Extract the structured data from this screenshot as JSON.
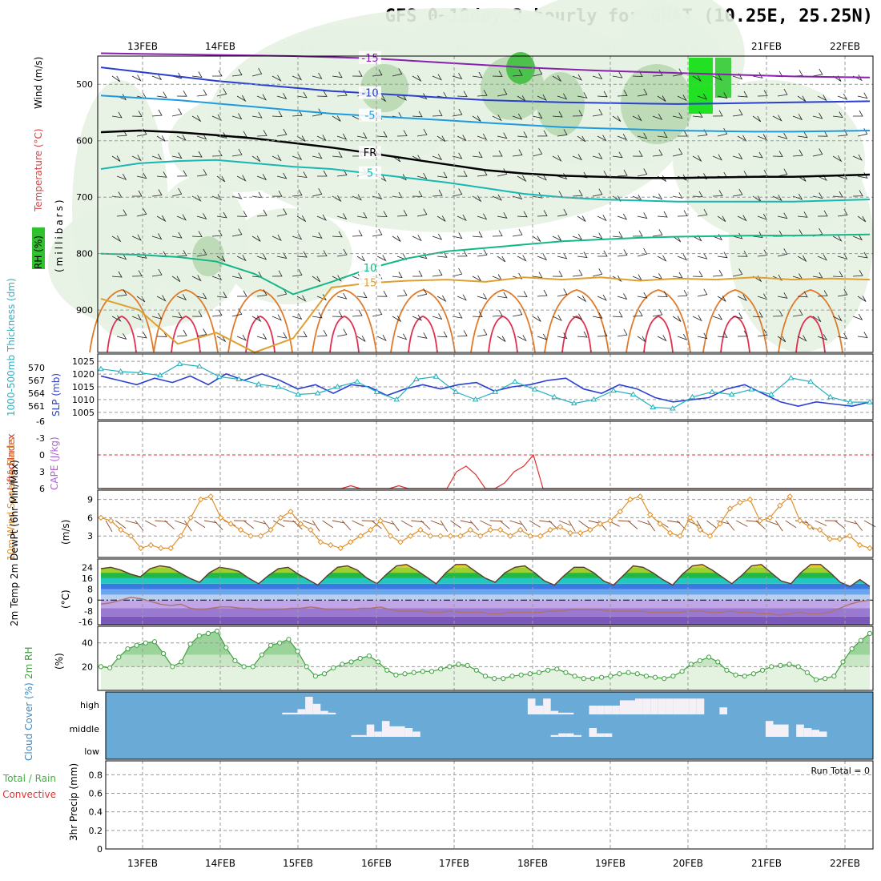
{
  "title": "GFS 0~10day 3-hourly for GHAT (10.25E, 25.25N)",
  "dates": [
    "13FEB",
    "14FEB",
    "15FEB",
    "16FEB",
    "17FEB",
    "18FEB",
    "19FEB",
    "20FEB",
    "21FEB",
    "22FEB"
  ],
  "colors": {
    "grid": "#9a9a9a",
    "cloud": "#6aaad6",
    "cloud_block": "#f4f0f6"
  },
  "chart_data": [
    {
      "type": "heatmap",
      "name": "upper-air",
      "ylabel": "(millibars)",
      "labels": [
        "RH (%)",
        "Temperature (°C)",
        "Wind (m/s)"
      ],
      "y_ticks": [
        500,
        600,
        700,
        800,
        900
      ],
      "ylim": [
        450,
        975
      ],
      "freezing_label": "FR",
      "isotherms": [
        {
          "value": -15,
          "label": "-15",
          "color": "#8a1fb0",
          "p": [
            445,
            446,
            447,
            448,
            449,
            450,
            452,
            454,
            458,
            462,
            466,
            470,
            473,
            476,
            478,
            480,
            482,
            484,
            486,
            487,
            488
          ]
        },
        {
          "value": -10,
          "label": "-10",
          "color": "#2a3fd0",
          "p": [
            470,
            478,
            486,
            494,
            500,
            506,
            512,
            516,
            520,
            524,
            528,
            530,
            532,
            533,
            534,
            535,
            534,
            533,
            532,
            531,
            530
          ]
        },
        {
          "value": -5,
          "label": "-5",
          "color": "#1e9be0",
          "p": [
            520,
            524,
            528,
            534,
            540,
            546,
            552,
            556,
            560,
            564,
            568,
            572,
            576,
            578,
            580,
            582,
            583,
            584,
            584,
            583,
            582
          ]
        },
        {
          "value": 0,
          "label": "FR",
          "color": "#000000",
          "p": [
            585,
            582,
            585,
            590,
            596,
            604,
            612,
            622,
            632,
            642,
            652,
            658,
            662,
            664,
            666,
            666,
            665,
            664,
            664,
            662,
            660
          ]
        },
        {
          "value": 5,
          "label": "5",
          "color": "#18b8b0",
          "p": [
            650,
            640,
            636,
            634,
            640,
            646,
            650,
            658,
            666,
            674,
            684,
            694,
            700,
            704,
            706,
            708,
            708,
            708,
            708,
            706,
            704
          ]
        },
        {
          "value": 10,
          "label": "10",
          "color": "#14b888",
          "p": [
            800,
            802,
            806,
            814,
            836,
            872,
            850,
            826,
            808,
            796,
            790,
            784,
            778,
            775,
            772,
            770,
            769,
            768,
            768,
            767,
            766
          ]
        },
        {
          "value": 15,
          "label": "15",
          "color": "#e0a030",
          "p": [
            880,
            900,
            960,
            940,
            980,
            950,
            860,
            852,
            848,
            846,
            850,
            842,
            846,
            842,
            848,
            844,
            846,
            842,
            846,
            844,
            846
          ]
        }
      ],
      "rh_contours": [
        "10",
        "50",
        "70"
      ]
    },
    {
      "type": "line",
      "name": "thickness-slp",
      "ylabel_left": "1000-500mb Thickness (dm)",
      "ylabel_right": "SLP (mb)",
      "left_ticks": [
        561,
        564,
        567,
        570
      ],
      "right_ticks": [
        1005,
        1010,
        1015,
        1020,
        1025
      ],
      "series": [
        {
          "name": "Thickness (dm)",
          "color": "#2a3fd0",
          "values": [
            568,
            567,
            566,
            567.5,
            566.5,
            568,
            566,
            568.5,
            567,
            568.5,
            567,
            565,
            566,
            564,
            566,
            565.5,
            563.5,
            565,
            566,
            565,
            566,
            566.5,
            564.5,
            565.5,
            566,
            567,
            567.5,
            565,
            564,
            566,
            565,
            563,
            562,
            562.5,
            563,
            565,
            566,
            564,
            562,
            561,
            562,
            561.5,
            561,
            562
          ]
        },
        {
          "name": "SLP (mb)",
          "color": "#22b0c0",
          "values": [
            1022,
            1021,
            1020.5,
            1019.5,
            1024,
            1023,
            1019,
            1018,
            1016,
            1015,
            1012,
            1012.5,
            1015,
            1017,
            1013,
            1010,
            1018,
            1019,
            1013,
            1010,
            1013,
            1017,
            1014,
            1011,
            1008.5,
            1010,
            1013.5,
            1012,
            1007,
            1006.5,
            1011,
            1013,
            1012,
            1014,
            1012,
            1018.5,
            1017,
            1011,
            1009,
            1009
          ]
        }
      ]
    },
    {
      "type": "line",
      "name": "lifted-index-cape",
      "ylabel_left": "Lifted Index",
      "ylabel_right": "CAPE (J/kg)",
      "left_ticks": [
        6,
        3,
        0,
        -3,
        -6
      ],
      "ylim": [
        6,
        -6
      ],
      "series": [
        {
          "name": "Lifted Index",
          "color": "#e03030",
          "values": [
            6,
            6,
            6,
            6,
            6,
            6,
            6,
            6,
            6,
            6,
            6,
            6,
            6,
            6,
            6,
            6,
            6,
            6,
            6,
            6,
            6,
            6,
            6,
            6,
            6,
            6,
            5.5,
            6,
            6,
            6,
            6,
            5.5,
            6,
            6,
            6,
            6,
            6,
            3,
            2,
            3.5,
            6,
            6,
            5,
            3,
            2,
            0,
            6,
            6,
            6,
            6,
            6,
            6,
            6,
            6,
            6,
            6,
            6,
            6,
            6,
            6,
            6,
            6,
            6,
            6,
            6,
            6,
            6,
            6,
            6,
            6,
            6,
            6,
            6,
            6,
            6,
            6,
            6,
            6,
            6,
            6,
            6
          ]
        },
        {
          "name": "Zero line",
          "color": "#e03030",
          "values": [
            0
          ]
        }
      ]
    },
    {
      "type": "line",
      "name": "10m-wind",
      "ylabel_left": "10m Wind Speed & Barbs",
      "ylabel_right": "(m/s)",
      "left_ticks": [
        3,
        6,
        9
      ],
      "ylim": [
        0,
        10
      ],
      "series": [
        {
          "name": "Wind speed (m/s)",
          "color": "#e0902a",
          "values": [
            6,
            5.5,
            4,
            3,
            1,
            1.5,
            1,
            1,
            3,
            6,
            9,
            9.5,
            6,
            5,
            4,
            3,
            3,
            4,
            6,
            7,
            5,
            4,
            2,
            1.5,
            1,
            2,
            3,
            4,
            5.5,
            3,
            2,
            3,
            4,
            3,
            3,
            3,
            3,
            4,
            3,
            4,
            4,
            3,
            4,
            3,
            3,
            4,
            4.5,
            3.5,
            3.5,
            4,
            5,
            5.5,
            7,
            9,
            9.5,
            6.5,
            5,
            3.5,
            3,
            6,
            4,
            3,
            5,
            7.5,
            8.5,
            9,
            5.5,
            6,
            8,
            9.5,
            5.5,
            4.5,
            4,
            2.5,
            2.5,
            3,
            1.5,
            1
          ]
        }
      ]
    },
    {
      "type": "area",
      "name": "temperature-dewpoint",
      "ylabel_left": "2m Temp 2m DewPt (6hr Min/Max)",
      "ylabel_right": "(°C)",
      "left_ticks": [
        24,
        16,
        8,
        0,
        -8,
        -16
      ],
      "ylim": [
        -18,
        30
      ],
      "series": [
        {
          "name": "2m Temp (°C)",
          "values": [
            23,
            24,
            22,
            19,
            17,
            23,
            25,
            24,
            20,
            16,
            13,
            20,
            24,
            23,
            21,
            16,
            12,
            18,
            23,
            24,
            19,
            15,
            11,
            18,
            24,
            25,
            22,
            16,
            12,
            19,
            25,
            26,
            22,
            17,
            12,
            20,
            26,
            26,
            21,
            16,
            13,
            20,
            24,
            25,
            20,
            14,
            11,
            18,
            24,
            24,
            20,
            14,
            11,
            18,
            25,
            24,
            20,
            15,
            11,
            19,
            25,
            26,
            22,
            17,
            12,
            18,
            25,
            26,
            20,
            14,
            12,
            20,
            26,
            26,
            20,
            13,
            10,
            15,
            10
          ]
        },
        {
          "name": "2m DewPt (°C)",
          "values": [
            -3,
            -2,
            0,
            2,
            1,
            -1,
            -3,
            -4,
            -3,
            -6,
            -7,
            -6,
            -5,
            -5,
            -6,
            -6,
            -7,
            -7,
            -7,
            -6,
            -6,
            -5,
            -6,
            -7,
            -7,
            -7,
            -6,
            -6,
            -5,
            -7,
            -8,
            -8,
            -8,
            -9,
            -9,
            -8,
            -9,
            -9,
            -9,
            -10,
            -10,
            -9,
            -9,
            -9,
            -9,
            -8,
            -8,
            -7,
            -7,
            -7,
            -7,
            -8,
            -8,
            -8,
            -8,
            -9,
            -9,
            -9,
            -9,
            -8,
            -8,
            -9,
            -9,
            -8,
            -9,
            -9,
            -10,
            -10,
            -11,
            -10,
            -9,
            -10,
            -10,
            -9,
            -6,
            -3,
            -1,
            0
          ]
        }
      ]
    },
    {
      "type": "area",
      "name": "relative-humidity",
      "ylabel_left": "2m RH",
      "ylabel_right": "(%)",
      "left_ticks": [
        20,
        40
      ],
      "ylim": [
        0,
        54
      ],
      "series": [
        {
          "name": "2m RH (%)",
          "color": "#40a040",
          "values": [
            20,
            19,
            28,
            35,
            38,
            40,
            41,
            31,
            20,
            24,
            39,
            46,
            48,
            50,
            36,
            25,
            20,
            20,
            30,
            38,
            40,
            43,
            33,
            20,
            12,
            14,
            19,
            22,
            24,
            27,
            29,
            24,
            17,
            13,
            14,
            15,
            16,
            16,
            18,
            20,
            22,
            21,
            17,
            12,
            10,
            10,
            12,
            13,
            14,
            15,
            17,
            18,
            15,
            12,
            10,
            10,
            11,
            12,
            14,
            15,
            14,
            12,
            11,
            10,
            12,
            16,
            22,
            25,
            28,
            24,
            17,
            13,
            12,
            14,
            17,
            20,
            21,
            22,
            20,
            15,
            9,
            10,
            12,
            24,
            35,
            42,
            48
          ]
        }
      ]
    },
    {
      "type": "bar",
      "name": "cloud-cover",
      "ylabel": "Cloud Cover (%)",
      "levels": [
        "high",
        "middle",
        "low"
      ],
      "series": [
        {
          "name": "high",
          "values": [
            0,
            0,
            0,
            0,
            0,
            0,
            0,
            0,
            0,
            0,
            0,
            0,
            0,
            0,
            0,
            0,
            0,
            0,
            0,
            0,
            0,
            0,
            0,
            0.1,
            0.1,
            0.3,
            1,
            0.6,
            0.2,
            0.1,
            0,
            0,
            0,
            0,
            0,
            0,
            0,
            0,
            0,
            0,
            0,
            0,
            0,
            0,
            0,
            0,
            0,
            0,
            0,
            0,
            0,
            0,
            0,
            0,
            0,
            0.9,
            0.5,
            0.9,
            0.2,
            0.1,
            0.1,
            0,
            0,
            0.5,
            0.5,
            0.5,
            0.5,
            0.8,
            0.8,
            0.9,
            0.9,
            0.9,
            0.9,
            0.9,
            0.9,
            0.9,
            0.9,
            0.9,
            0,
            0,
            0.4,
            0,
            0,
            0,
            0,
            0,
            0,
            0,
            0,
            0,
            0,
            0,
            0,
            0,
            0,
            0,
            0,
            0,
            0,
            0
          ]
        },
        {
          "name": "middle",
          "values": [
            0,
            0,
            0,
            0,
            0,
            0,
            0,
            0,
            0,
            0,
            0,
            0,
            0,
            0,
            0,
            0,
            0,
            0,
            0,
            0,
            0,
            0,
            0,
            0,
            0,
            0,
            0,
            0,
            0,
            0,
            0,
            0,
            0.1,
            0.1,
            0.7,
            0.3,
            0.9,
            0.6,
            0.6,
            0.5,
            0.3,
            0,
            0,
            0,
            0,
            0,
            0,
            0,
            0,
            0,
            0,
            0,
            0,
            0,
            0,
            0,
            0,
            0,
            0.1,
            0.2,
            0.2,
            0.1,
            0,
            0.5,
            0.2,
            0.2,
            0,
            0,
            0,
            0,
            0,
            0,
            0,
            0,
            0,
            0,
            0,
            0,
            0,
            0,
            0,
            0,
            0,
            0,
            0,
            0,
            0.9,
            0.7,
            0.7,
            0,
            0.7,
            0.5,
            0.4,
            0.3,
            0,
            0,
            0,
            0,
            0,
            0
          ]
        },
        {
          "name": "low",
          "values": [
            0
          ]
        }
      ]
    },
    {
      "type": "bar",
      "name": "precipitation",
      "ylabel_left": "3hr Precip (mm)",
      "side_labels": [
        "Total / Rain",
        "Convective"
      ],
      "left_ticks": [
        0,
        0.2,
        0.4,
        0.6,
        0.8
      ],
      "ylim": [
        0,
        0.95
      ],
      "run_total": "Run Total = 0",
      "series": [
        {
          "name": "Total / Rain",
          "values": [
            0
          ]
        },
        {
          "name": "Convective",
          "values": [
            0
          ]
        }
      ]
    }
  ]
}
